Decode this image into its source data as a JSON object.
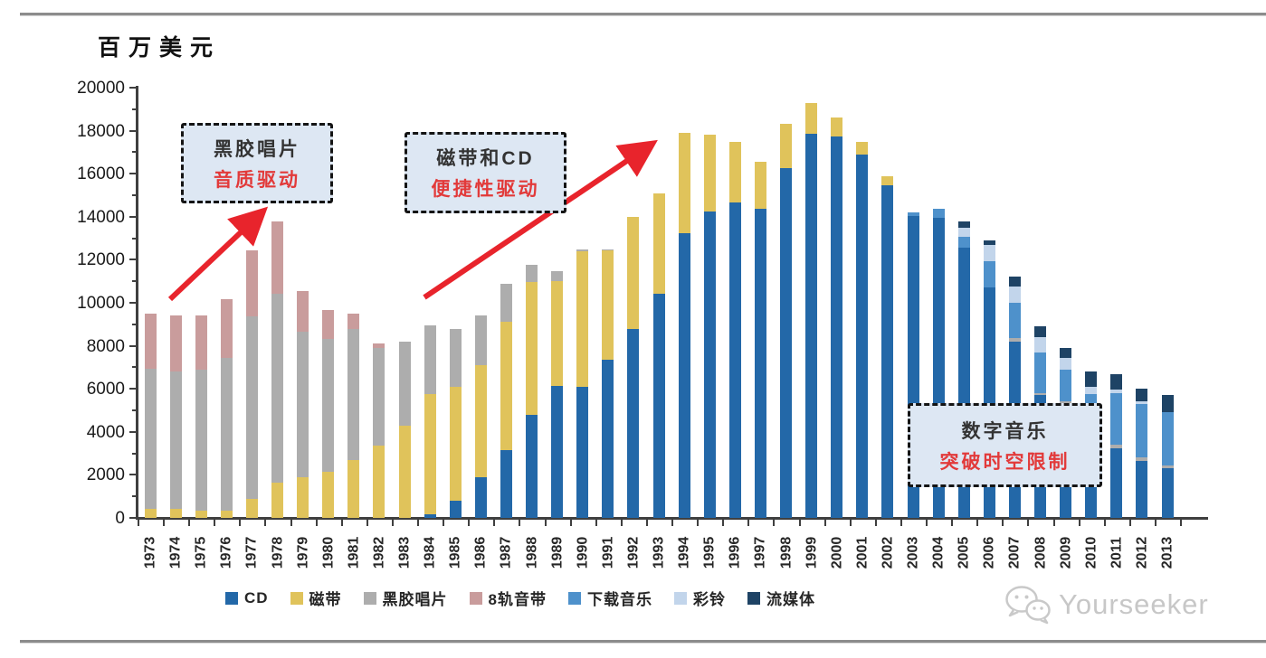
{
  "page": {
    "unit_label": "百万美元",
    "watermark_text": "Yourseeker"
  },
  "annotations": [
    {
      "line1": "黑胶唱片",
      "line2": "音质驱动"
    },
    {
      "line1": "磁带和CD",
      "line2": "便捷性驱动"
    },
    {
      "line1": "数字音乐",
      "line2": "突破时空限制"
    }
  ],
  "colors": {
    "arrow_red": "#e8242c",
    "annotation_red": "#e23a3a",
    "axis": "#3f3f3f"
  },
  "chart_data": {
    "type": "bar",
    "stacked": true,
    "title": "",
    "ylabel": "百万美元",
    "xlabel": "",
    "ylim": [
      0,
      20000
    ],
    "ytick_major_step": 2000,
    "ytick_minor_step": 1000,
    "grid": false,
    "legend_position": "bottom",
    "categories": [
      1973,
      1974,
      1975,
      1976,
      1977,
      1978,
      1979,
      1980,
      1981,
      1982,
      1983,
      1984,
      1985,
      1986,
      1987,
      1988,
      1989,
      1990,
      1991,
      1992,
      1993,
      1994,
      1995,
      1996,
      1997,
      1998,
      1999,
      2000,
      2001,
      2002,
      2003,
      2004,
      2005,
      2006,
      2007,
      2008,
      2009,
      2010,
      2011,
      2012,
      2013
    ],
    "series": [
      {
        "name": "CD",
        "color": "#2368a8",
        "values": [
          0,
          0,
          0,
          0,
          0,
          0,
          0,
          0,
          0,
          0,
          0,
          150,
          800,
          1900,
          3150,
          4800,
          6150,
          6100,
          7350,
          8800,
          10400,
          13250,
          14250,
          14650,
          14350,
          16250,
          17850,
          17750,
          16900,
          15450,
          14050,
          13950,
          12550,
          10700,
          8200,
          5700,
          5300,
          3100,
          3250,
          2650,
          2300
        ]
      },
      {
        "name": "磁带",
        "color": "#e0c35b",
        "values": [
          400,
          400,
          350,
          350,
          900,
          1650,
          1900,
          2150,
          2700,
          3350,
          4300,
          5600,
          5300,
          5200,
          5950,
          6150,
          4850,
          6300,
          5100,
          5200,
          4700,
          4650,
          3550,
          2850,
          2200,
          2050,
          1450,
          850,
          600,
          450,
          0,
          0,
          0,
          0,
          0,
          0,
          0,
          0,
          0,
          0,
          0
        ]
      },
      {
        "name": "黑胶唱片",
        "color": "#adadad",
        "values": [
          6550,
          6400,
          6550,
          7100,
          8450,
          8750,
          6750,
          6150,
          6100,
          4550,
          3900,
          3200,
          2700,
          2300,
          1800,
          800,
          450,
          100,
          50,
          0,
          0,
          0,
          0,
          0,
          0,
          0,
          0,
          0,
          0,
          0,
          0,
          0,
          0,
          0,
          150,
          100,
          100,
          100,
          150,
          150,
          150
        ]
      },
      {
        "name": "8轨音带",
        "color": "#c99c9c",
        "values": [
          2550,
          2600,
          2500,
          2700,
          3100,
          3400,
          1900,
          1350,
          700,
          200,
          0,
          0,
          0,
          0,
          0,
          0,
          0,
          0,
          0,
          0,
          0,
          0,
          0,
          0,
          0,
          0,
          0,
          0,
          0,
          0,
          0,
          0,
          0,
          0,
          0,
          0,
          0,
          0,
          0,
          0,
          0
        ]
      },
      {
        "name": "下载音乐",
        "color": "#4e91cb",
        "values": [
          0,
          0,
          0,
          0,
          0,
          0,
          0,
          0,
          0,
          0,
          0,
          0,
          0,
          0,
          0,
          0,
          0,
          0,
          0,
          0,
          0,
          0,
          0,
          0,
          0,
          0,
          0,
          0,
          0,
          0,
          150,
          400,
          500,
          1250,
          1650,
          1900,
          1500,
          2550,
          2400,
          2500,
          2450
        ]
      },
      {
        "name": "彩铃",
        "color": "#c2d5eb",
        "values": [
          0,
          0,
          0,
          0,
          0,
          0,
          0,
          0,
          0,
          0,
          0,
          0,
          0,
          0,
          0,
          0,
          0,
          0,
          0,
          0,
          0,
          0,
          0,
          0,
          0,
          0,
          0,
          0,
          0,
          0,
          0,
          0,
          450,
          750,
          750,
          700,
          550,
          350,
          150,
          100,
          0
        ]
      },
      {
        "name": "流媒体",
        "color": "#1e4365",
        "values": [
          0,
          0,
          0,
          0,
          0,
          0,
          0,
          0,
          0,
          0,
          0,
          0,
          0,
          0,
          0,
          0,
          0,
          0,
          0,
          0,
          0,
          0,
          0,
          0,
          0,
          0,
          0,
          0,
          0,
          0,
          0,
          0,
          300,
          200,
          450,
          500,
          450,
          700,
          750,
          600,
          800
        ]
      }
    ],
    "annotations_text": [
      "黑胶唱片 音质驱动",
      "磁带和CD 便捷性驱动",
      "数字音乐 突破时空限制"
    ]
  }
}
